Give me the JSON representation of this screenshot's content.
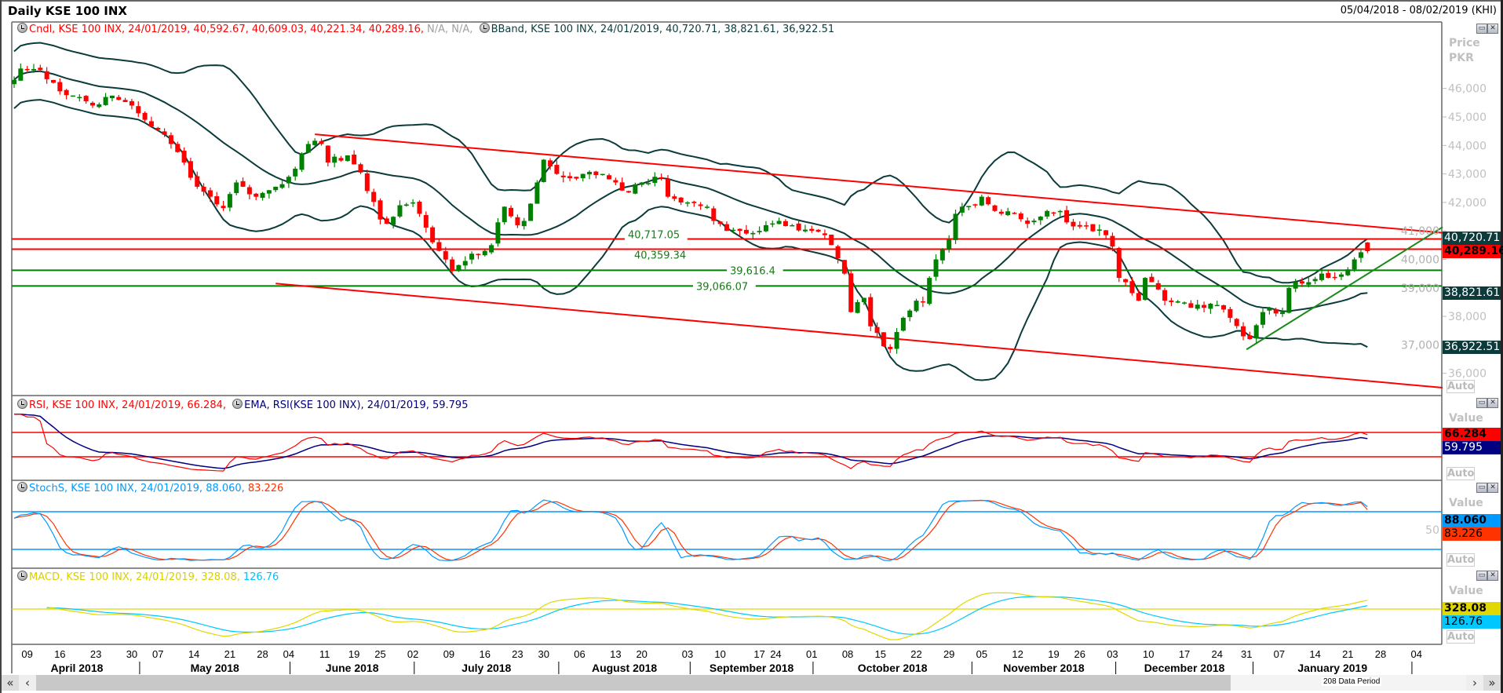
{
  "header": {
    "title": "Daily KSE 100 INX",
    "date_range": "05/04/2018 - 08/02/2019 (KHI)"
  },
  "legends": {
    "candle": {
      "text": "Cndl, KSE 100 INX, 24/01/2019, 40,592.67, 40,609.03, 40,221.34, 40,289.16,",
      "na": "N/A, N/A,"
    },
    "bband": "BBand, KSE 100 INX, 24/01/2019, 40,720.71, 38,821.61, 36,922.51",
    "rsi": "RSI, KSE 100 INX, 24/01/2019, 66.284,",
    "rsi_ema": "EMA, RSI(KSE 100 INX), 24/01/2019, 59.795",
    "stoch_k": "StochS, KSE 100 INX, 24/01/2019, 88.060,",
    "stoch_d": "83.226",
    "macd": "MACD, KSE 100 INX, 24/01/2019, 328.08,",
    "macd_signal": "126.76"
  },
  "axis": {
    "price_title": [
      "Price",
      "PKR"
    ],
    "value_title": "Value",
    "auto_label": "Auto",
    "price_ticks": [
      "46,000",
      "45,000",
      "44,000",
      "43,000",
      "42,000",
      "41,000",
      "40,000",
      "39,000",
      "38,000",
      "37,000",
      "36,000"
    ],
    "price_tick_values": [
      46000,
      45000,
      44000,
      43000,
      42000,
      41000,
      40000,
      39000,
      38000,
      37000,
      36000
    ],
    "stoch_tick": "50",
    "value_boxes": {
      "bb_upper": "40,720.71",
      "close": "40,289.16",
      "bb_mid": "38,821.61",
      "bb_lower": "36,922.51",
      "rsi": "66.284",
      "rsi_ema": "59.795",
      "stoch_k": "88.060",
      "stoch_d": "83.226",
      "macd": "328.08",
      "macd_signal": "126.76"
    }
  },
  "colors": {
    "up": "#008000",
    "down": "#ff0000",
    "bband": "#0b3b3b",
    "rsi": "#ff0000",
    "rsi_ema": "#000080",
    "stoch_k": "#0099ff",
    "stoch_d": "#ff3300",
    "macd": "#e0d800",
    "macd_signal": "#00c8ff"
  },
  "chart_data": {
    "type": "candlestick",
    "title": "Daily KSE 100 INX",
    "ylabel": "Price PKR",
    "ylim": [
      35500,
      47000
    ],
    "data_periods": 208,
    "last_candle": {
      "date": "24/01/2019",
      "open": 40592.67,
      "high": 40609.03,
      "low": 40221.34,
      "close": 40289.16
    },
    "bband_last": {
      "upper": 40720.71,
      "middle": 38821.61,
      "lower": 36922.51
    },
    "close_keypoints": [
      [
        0,
        46300
      ],
      [
        1,
        46700
      ],
      [
        4,
        46650
      ],
      [
        6,
        46200
      ],
      [
        7,
        45900
      ],
      [
        10,
        45700
      ],
      [
        12,
        45400
      ],
      [
        14,
        45700
      ],
      [
        16,
        45600
      ],
      [
        18,
        45400
      ],
      [
        20,
        44900
      ],
      [
        22,
        44550
      ],
      [
        24,
        44050
      ],
      [
        26,
        43400
      ],
      [
        28,
        42550
      ],
      [
        30,
        42200
      ],
      [
        32,
        41800
      ],
      [
        34,
        42700
      ],
      [
        35,
        42550
      ],
      [
        37,
        42200
      ],
      [
        40,
        42550
      ],
      [
        42,
        42900
      ],
      [
        44,
        43700
      ],
      [
        45,
        44050
      ],
      [
        47,
        44050
      ],
      [
        48,
        43400
      ],
      [
        51,
        43650
      ],
      [
        53,
        43050
      ],
      [
        54,
        42400
      ],
      [
        56,
        41400
      ],
      [
        57,
        41250
      ],
      [
        59,
        41900
      ],
      [
        61,
        42000
      ],
      [
        62,
        41600
      ],
      [
        64,
        40600
      ],
      [
        65,
        40300
      ],
      [
        67,
        39600
      ],
      [
        68,
        39800
      ],
      [
        70,
        40200
      ],
      [
        72,
        40300
      ],
      [
        73,
        40500
      ],
      [
        75,
        41850
      ],
      [
        77,
        41200
      ],
      [
        78,
        41350
      ],
      [
        80,
        42700
      ],
      [
        81,
        43500
      ],
      [
        83,
        43000
      ],
      [
        85,
        42850
      ],
      [
        87,
        43000
      ],
      [
        90,
        43000
      ],
      [
        92,
        42700
      ],
      [
        94,
        42350
      ],
      [
        96,
        42700
      ],
      [
        99,
        42850
      ],
      [
        100,
        42200
      ],
      [
        103,
        42000
      ],
      [
        106,
        41850
      ],
      [
        107,
        41350
      ],
      [
        109,
        41000
      ],
      [
        111,
        41000
      ],
      [
        114,
        41000
      ],
      [
        115,
        41200
      ],
      [
        117,
        41350
      ],
      [
        119,
        41200
      ],
      [
        122,
        41000
      ],
      [
        124,
        40850
      ],
      [
        125,
        40500
      ],
      [
        127,
        39500
      ],
      [
        128,
        38150
      ],
      [
        129,
        38500
      ],
      [
        130,
        38650
      ],
      [
        131,
        37650
      ],
      [
        133,
        36950
      ],
      [
        134,
        36850
      ],
      [
        135,
        37450
      ],
      [
        136,
        37950
      ],
      [
        138,
        38550
      ],
      [
        139,
        38500
      ],
      [
        140,
        39350
      ],
      [
        141,
        40000
      ],
      [
        143,
        40700
      ],
      [
        144,
        41600
      ],
      [
        145,
        41850
      ],
      [
        147,
        41900
      ],
      [
        148,
        42200
      ],
      [
        150,
        41700
      ],
      [
        151,
        41600
      ],
      [
        153,
        41600
      ],
      [
        155,
        41250
      ],
      [
        157,
        41500
      ],
      [
        158,
        41700
      ],
      [
        160,
        41700
      ],
      [
        161,
        41300
      ],
      [
        163,
        41150
      ],
      [
        166,
        41050
      ],
      [
        167,
        40850
      ],
      [
        168,
        40450
      ],
      [
        169,
        39350
      ],
      [
        170,
        39200
      ],
      [
        172,
        38550
      ],
      [
        173,
        39350
      ],
      [
        174,
        39200
      ],
      [
        176,
        38550
      ],
      [
        177,
        38500
      ],
      [
        180,
        38300
      ],
      [
        182,
        38300
      ],
      [
        184,
        38400
      ],
      [
        186,
        37950
      ],
      [
        188,
        37300
      ],
      [
        189,
        37200
      ],
      [
        191,
        38150
      ],
      [
        192,
        38300
      ],
      [
        194,
        38150
      ],
      [
        195,
        39000
      ],
      [
        196,
        39200
      ],
      [
        198,
        39200
      ],
      [
        200,
        39500
      ],
      [
        202,
        39350
      ],
      [
        204,
        39650
      ],
      [
        205,
        40000
      ],
      [
        206,
        40250
      ],
      [
        207,
        40289.16
      ]
    ],
    "horizontal_lines": [
      {
        "value": 40717.05,
        "label": "40,717.05",
        "color": "#ff0000"
      },
      {
        "value": 40359.34,
        "label": "40,359.34",
        "color": "#ff0000"
      },
      {
        "value": 39616.4,
        "label": "39,616.4",
        "color": "#008000"
      },
      {
        "value": 39066.07,
        "label": "39,066.07",
        "color": "#008000"
      }
    ],
    "trend_lines": [
      {
        "name": "channel-upper",
        "from": [
          46,
          44390
        ],
        "to": [
          218.5,
          40933
        ],
        "color": "#ff0000"
      },
      {
        "name": "channel-lower",
        "from": [
          40,
          39154
        ],
        "to": [
          218.5,
          35497
        ],
        "color": "#ff0000"
      },
      {
        "name": "uptrend",
        "from": [
          188.5,
          36839
        ],
        "to": [
          218.5,
          41134
        ],
        "color": "#1a8a1a"
      }
    ],
    "indicators": {
      "rsi": {
        "period": 14,
        "levels": [
          70,
          30
        ],
        "last": 66.284,
        "ema_last": 59.795
      },
      "stoch": {
        "levels": [
          80,
          20
        ],
        "k_last": 88.06,
        "d_last": 83.226
      },
      "macd": {
        "last": 328.08,
        "signal_last": 126.76
      }
    },
    "x_ticks": [
      [
        "09",
        2
      ],
      [
        "16",
        7
      ],
      [
        "23",
        12.5
      ],
      [
        "30",
        18
      ],
      [
        "07",
        22
      ],
      [
        "14",
        27.5
      ],
      [
        "21",
        33
      ],
      [
        "28",
        38
      ],
      [
        "04",
        42
      ],
      [
        "11",
        47.5
      ],
      [
        "19",
        52
      ],
      [
        "25",
        56
      ],
      [
        "02",
        61
      ],
      [
        "09",
        66.5
      ],
      [
        "16",
        72
      ],
      [
        "23",
        77
      ],
      [
        "30",
        81
      ],
      [
        "06",
        86.5
      ],
      [
        "13",
        92
      ],
      [
        "20",
        96
      ],
      [
        "03",
        103
      ],
      [
        "10",
        108
      ],
      [
        "17",
        114
      ],
      [
        "24",
        116.5
      ],
      [
        "01",
        122
      ],
      [
        "08",
        127.5
      ],
      [
        "15",
        132.5
      ],
      [
        "22",
        138
      ],
      [
        "29",
        143
      ],
      [
        "05",
        148
      ],
      [
        "12",
        153.5
      ],
      [
        "19",
        159
      ],
      [
        "26",
        163
      ],
      [
        "03",
        168
      ],
      [
        "10",
        173.5
      ],
      [
        "17",
        179
      ],
      [
        "24",
        184
      ],
      [
        "31",
        188.5
      ],
      [
        "07",
        193.5
      ],
      [
        "14",
        199
      ],
      [
        "21",
        204
      ],
      [
        "28",
        209
      ],
      [
        "04",
        214.5
      ]
    ],
    "months": [
      [
        "April 2018",
        0,
        19.2
      ],
      [
        "May 2018",
        19.2,
        42.2
      ],
      [
        "June 2018",
        42.2,
        61.2
      ],
      [
        "July 2018",
        61.2,
        83.3
      ],
      [
        "August 2018",
        83.3,
        103.4
      ],
      [
        "September 2018",
        103.4,
        122.2
      ],
      [
        "October 2018",
        122.2,
        146.5
      ],
      [
        "November 2018",
        146.5,
        168.5
      ],
      [
        "December 2018",
        168.5,
        189.5
      ],
      [
        "January 2019",
        189.5,
        213.8
      ]
    ]
  },
  "scrollbar": {
    "first": "«",
    "prev": "‹",
    "next": "›",
    "last": "»",
    "period_label": "208 Data Period"
  }
}
